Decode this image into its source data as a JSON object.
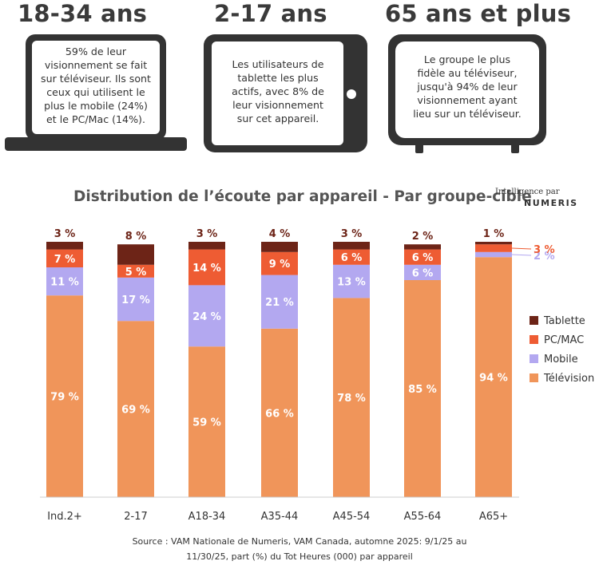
{
  "groups": [
    {
      "title": "18-34 ans",
      "text": [
        "59% de leur",
        "visionnement se fait",
        "sur téléviseur. Ils sont",
        "ceux qui utilisent le",
        "plus le mobile (24%)",
        "et le PC/Mac (14%)."
      ]
    },
    {
      "title": "2-17 ans",
      "text": [
        "Les utilisateurs de",
        "tablette les plus",
        "actifs, avec 8% de",
        "leur visionnement",
        "sur cet appareil."
      ]
    },
    {
      "title": "65 ans et plus",
      "text": [
        "Le groupe le plus",
        "fidèle au téléviseur,",
        "jusqu'à 94% de leur",
        "visionnement ayant",
        "lieu sur un téléviseur."
      ]
    }
  ],
  "brand": {
    "line1": "Intelligence par",
    "line2": "NUMERIS"
  },
  "footer": {
    "line1": "Source : VAM Nationale de Numeris, VAM Canada, automne 2025: 9/1/25 au",
    "line2": "11/30/25, part (%) du Tot Heures (000) par appareil"
  },
  "chart_data": {
    "type": "bar",
    "stacked": true,
    "title": "Distribution de l’écoute par appareil - Par groupe-cible",
    "categories": [
      "Ind.2+",
      "2-17",
      "A18-34",
      "A35-44",
      "A45-54",
      "A55-64",
      "A65+"
    ],
    "ylim": [
      0,
      100
    ],
    "grid": false,
    "legend_position": "right",
    "series": [
      {
        "name": "Télévision",
        "color": "#f0955a",
        "values": [
          79,
          69,
          59,
          66,
          78,
          85,
          94
        ],
        "labels": [
          "79 %",
          "69 %",
          "59 %",
          "66 %",
          "78 %",
          "85 %",
          "94 %"
        ]
      },
      {
        "name": "Mobile",
        "color": "#b3a8f0",
        "values": [
          11,
          17,
          24,
          21,
          13,
          6,
          2
        ],
        "labels": [
          "11 %",
          "17 %",
          "24 %",
          "21 %",
          "13 %",
          "6 %",
          "2 %"
        ]
      },
      {
        "name": "PC/MAC",
        "color": "#ee5c33",
        "values": [
          7,
          5,
          14,
          9,
          6,
          6,
          3
        ],
        "labels": [
          "7 %",
          "5 %",
          "14 %",
          "9 %",
          "6 %",
          "6 %",
          "3 %"
        ]
      },
      {
        "name": "Tablette",
        "color": "#6d2417",
        "values": [
          3,
          8,
          3,
          4,
          3,
          2,
          1
        ],
        "labels": [
          "3 %",
          "8 %",
          "3 %",
          "4 %",
          "3 %",
          "2 %",
          "1 %"
        ]
      }
    ],
    "legend_order": [
      "Tablette",
      "PC/MAC",
      "Mobile",
      "Télévision"
    ]
  }
}
